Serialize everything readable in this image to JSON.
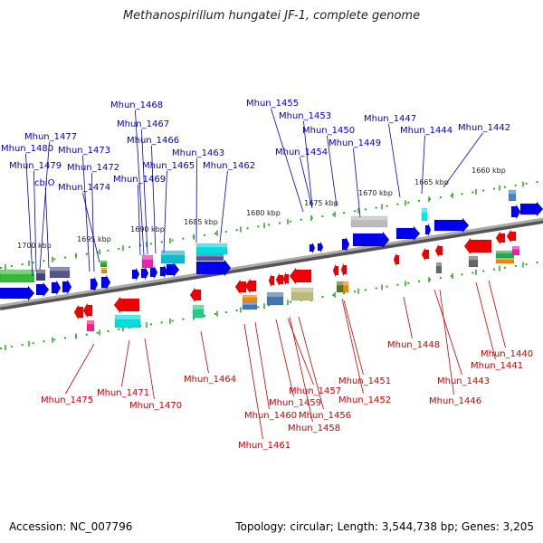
{
  "title": "Methanospirillum hungatei JF-1, complete genome",
  "footer": {
    "accession": "Accession: NC_007796",
    "topology": "Topology: circular; Length: 3,544,738 bp; Genes: 3,205"
  },
  "colors": {
    "forward_label": "#0000cc",
    "reverse_label": "#cc0000",
    "forward_gene": "#0000ee",
    "reverse_gene": "#ee0000",
    "backbone": "#888888",
    "scale": "#22aa22"
  },
  "kbp_ticks": [
    "1700 kbp",
    "1695 kbp",
    "1690 kbp",
    "1685 kbp",
    "1680 kbp",
    "1675 kbp",
    "1670 kbp",
    "1665 kbp",
    "1660 kbp"
  ],
  "forward_labels": [
    "Mhun_1480",
    "Mhun_1477",
    "Mhun_1479",
    "cbiO",
    "Mhun_1473",
    "Mhun_1472",
    "Mhun_1474",
    "Mhun_1468",
    "Mhun_1467",
    "Mhun_1466",
    "Mhun_1465",
    "Mhun_1469",
    "Mhun_1463",
    "Mhun_1462",
    "Mhun_1455",
    "Mhun_1453",
    "Mhun_1450",
    "Mhun_1454",
    "Mhun_1449",
    "Mhun_1447",
    "Mhun_1444",
    "Mhun_1442"
  ],
  "reverse_labels": [
    "Mhun_1475",
    "Mhun_1471",
    "Mhun_1470",
    "Mhun_1464",
    "Mhun_1460",
    "Mhun_1461",
    "Mhun_1459",
    "Mhun_1457",
    "Mhun_1456",
    "Mhun_1458",
    "Mhun_1451",
    "Mhun_1452",
    "Mhun_1448",
    "Mhun_1443",
    "Mhun_1446",
    "Mhun_1441",
    "Mhun_1440"
  ]
}
